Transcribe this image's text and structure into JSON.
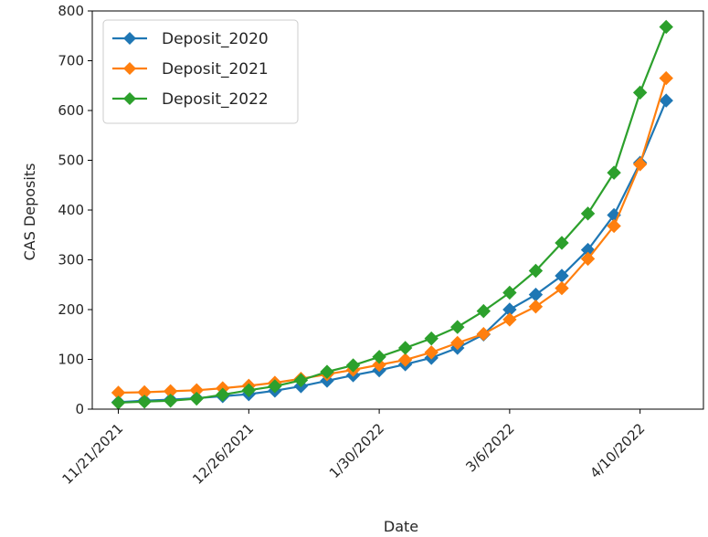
{
  "chart_data": {
    "type": "line",
    "xlabel": "Date",
    "ylabel": "CAS Deposits",
    "ylim": [
      0,
      800
    ],
    "yticks": [
      0,
      100,
      200,
      300,
      400,
      500,
      600,
      700,
      800
    ],
    "xlim": [
      "2021-11-14",
      "2022-04-27"
    ],
    "xticks": [
      "2021-11-21",
      "2021-12-26",
      "2022-01-30",
      "2022-03-06",
      "2022-04-10"
    ],
    "xtick_labels": [
      "11/21/2021",
      "12/26/2021",
      "1/30/2022",
      "3/6/2022",
      "4/10/2022"
    ],
    "grid": false,
    "legend_position": "top-left",
    "x": [
      "2021-11-21",
      "2021-11-28",
      "2021-12-05",
      "2021-12-12",
      "2021-12-19",
      "2021-12-26",
      "2022-01-02",
      "2022-01-09",
      "2022-01-16",
      "2022-01-23",
      "2022-01-30",
      "2022-02-06",
      "2022-02-13",
      "2022-02-20",
      "2022-02-27",
      "2022-03-06",
      "2022-03-13",
      "2022-03-20",
      "2022-03-27",
      "2022-04-03",
      "2022-04-10",
      "2022-04-17"
    ],
    "series": [
      {
        "name": "Deposit_2020",
        "color": "#1f77b4",
        "marker": "diamond",
        "values": [
          14,
          17,
          19,
          22,
          26,
          30,
          37,
          46,
          57,
          68,
          78,
          90,
          103,
          123,
          150,
          200,
          230,
          268,
          320,
          390,
          495,
          620
        ]
      },
      {
        "name": "Deposit_2021",
        "color": "#ff7f0e",
        "marker": "diamond",
        "values": [
          33,
          34,
          36,
          38,
          42,
          47,
          53,
          61,
          70,
          79,
          89,
          99,
          114,
          133,
          151,
          180,
          206,
          243,
          302,
          368,
          492,
          665
        ]
      },
      {
        "name": "Deposit_2022",
        "color": "#2ca02c",
        "marker": "diamond",
        "values": [
          13,
          15,
          17,
          21,
          29,
          38,
          46,
          58,
          75,
          88,
          105,
          123,
          142,
          165,
          197,
          234,
          278,
          334,
          393,
          475,
          636,
          768
        ]
      }
    ]
  }
}
